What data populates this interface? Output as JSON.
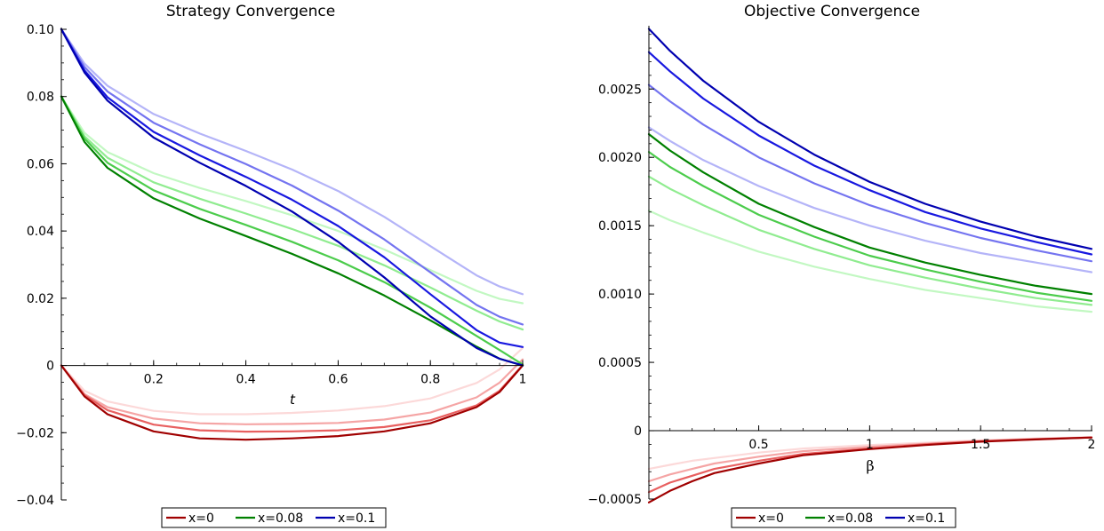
{
  "colors": {
    "x0": [
      "#a00000",
      "#e86060",
      "#f5a5a5",
      "#fcd9d9"
    ],
    "x008": [
      "#008000",
      "#4ccc4c",
      "#90ec90",
      "#c2f8c2"
    ],
    "x01": [
      "#0000b0",
      "#1818e0",
      "#7474f0",
      "#b4b4f8"
    ]
  },
  "chart_data": [
    {
      "type": "line",
      "title": "Strategy Convergence",
      "xlabel": "t",
      "ylabel": "",
      "xlim": [
        0,
        1
      ],
      "ylim": [
        -0.04,
        0.1
      ],
      "xticks": [
        "0.2",
        "0.4",
        "0.6",
        "0.8",
        "1"
      ],
      "yticks": [
        "0.10",
        "0.08",
        "0.06",
        "0.04",
        "0.02",
        "0",
        "−0.02",
        "−0.04"
      ],
      "legend": [
        "x=0",
        "x=0.08",
        "x=0.1"
      ],
      "legend_position": "bottom",
      "series": [
        {
          "name": "x=0",
          "group": "x0",
          "shade": 0,
          "x": [
            0,
            0.05,
            0.1,
            0.2,
            0.3,
            0.4,
            0.5,
            0.6,
            0.7,
            0.8,
            0.9,
            0.95,
            1
          ],
          "y": [
            0,
            -0.0092,
            -0.0145,
            -0.0196,
            -0.0217,
            -0.0221,
            -0.0217,
            -0.021,
            -0.0196,
            -0.0172,
            -0.0124,
            -0.0079,
            0
          ]
        },
        {
          "group": "x0",
          "shade": 1,
          "x": [
            0,
            0.05,
            0.1,
            0.2,
            0.3,
            0.4,
            0.5,
            0.6,
            0.7,
            0.8,
            0.9,
            0.95,
            1
          ],
          "y": [
            0,
            -0.0088,
            -0.0133,
            -0.0176,
            -0.0193,
            -0.0197,
            -0.0196,
            -0.0193,
            -0.0183,
            -0.0163,
            -0.0119,
            -0.0075,
            0.0001
          ]
        },
        {
          "group": "x0",
          "shade": 2,
          "x": [
            0,
            0.05,
            0.1,
            0.2,
            0.3,
            0.4,
            0.5,
            0.6,
            0.7,
            0.8,
            0.9,
            0.95,
            1
          ],
          "y": [
            0,
            -0.0085,
            -0.0124,
            -0.0158,
            -0.0172,
            -0.0175,
            -0.0174,
            -0.0171,
            -0.0161,
            -0.014,
            -0.0095,
            -0.0051,
            0.0018
          ]
        },
        {
          "group": "x0",
          "shade": 3,
          "x": [
            0,
            0.05,
            0.1,
            0.2,
            0.3,
            0.4,
            0.5,
            0.6,
            0.7,
            0.8,
            0.9,
            0.95,
            1
          ],
          "y": [
            0,
            -0.0075,
            -0.0107,
            -0.0135,
            -0.0145,
            -0.0145,
            -0.0141,
            -0.0134,
            -0.0121,
            -0.0098,
            -0.0052,
            -0.0012,
            0.0052
          ]
        },
        {
          "name": "x=0.08",
          "group": "x008",
          "shade": 0,
          "x": [
            0,
            0.05,
            0.1,
            0.2,
            0.3,
            0.4,
            0.5,
            0.6,
            0.7,
            0.8,
            0.9,
            0.95,
            1
          ],
          "y": [
            0.08,
            0.0665,
            0.0588,
            0.0497,
            0.0437,
            0.0385,
            0.0332,
            0.0274,
            0.0208,
            0.0134,
            0.0056,
            0.002,
            0
          ]
        },
        {
          "group": "x008",
          "shade": 1,
          "x": [
            0,
            0.05,
            0.1,
            0.2,
            0.3,
            0.4,
            0.5,
            0.6,
            0.7,
            0.8,
            0.9,
            0.95,
            1
          ],
          "y": [
            0.08,
            0.0675,
            0.0603,
            0.0521,
            0.0466,
            0.0418,
            0.0368,
            0.0313,
            0.0248,
            0.0172,
            0.0088,
            0.0046,
            0.0003
          ]
        },
        {
          "group": "x008",
          "shade": 2,
          "x": [
            0,
            0.05,
            0.1,
            0.2,
            0.3,
            0.4,
            0.5,
            0.6,
            0.7,
            0.8,
            0.9,
            0.95,
            1
          ],
          "y": [
            0.08,
            0.0682,
            0.0618,
            0.0545,
            0.0496,
            0.0452,
            0.0406,
            0.0356,
            0.0298,
            0.0232,
            0.0163,
            0.0131,
            0.0107
          ]
        },
        {
          "group": "x008",
          "shade": 3,
          "x": [
            0,
            0.05,
            0.1,
            0.2,
            0.3,
            0.4,
            0.5,
            0.6,
            0.7,
            0.8,
            0.9,
            0.95,
            1
          ],
          "y": [
            0.08,
            0.0692,
            0.0635,
            0.0572,
            0.0528,
            0.0489,
            0.0447,
            0.04,
            0.0345,
            0.0284,
            0.0222,
            0.0198,
            0.0185
          ]
        },
        {
          "name": "x=0.1",
          "group": "x01",
          "shade": 0,
          "x": [
            0,
            0.05,
            0.1,
            0.2,
            0.3,
            0.4,
            0.5,
            0.6,
            0.7,
            0.8,
            0.9,
            0.95,
            1
          ],
          "y": [
            0.1,
            0.0872,
            0.0788,
            0.0678,
            0.0603,
            0.0534,
            0.0458,
            0.0368,
            0.0262,
            0.0146,
            0.0052,
            0.002,
            0
          ]
        },
        {
          "group": "x01",
          "shade": 1,
          "x": [
            0,
            0.05,
            0.1,
            0.2,
            0.3,
            0.4,
            0.5,
            0.6,
            0.7,
            0.8,
            0.9,
            0.95,
            1
          ],
          "y": [
            0.1,
            0.0878,
            0.0798,
            0.0695,
            0.0625,
            0.0561,
            0.0493,
            0.0415,
            0.0322,
            0.0212,
            0.0105,
            0.0068,
            0.0055
          ]
        },
        {
          "group": "x01",
          "shade": 2,
          "x": [
            0,
            0.05,
            0.1,
            0.2,
            0.3,
            0.4,
            0.5,
            0.6,
            0.7,
            0.8,
            0.9,
            0.95,
            1
          ],
          "y": [
            0.1,
            0.0888,
            0.0815,
            0.0722,
            0.0658,
            0.0599,
            0.0535,
            0.0461,
            0.0375,
            0.0277,
            0.018,
            0.0145,
            0.0122
          ]
        },
        {
          "group": "x01",
          "shade": 3,
          "x": [
            0,
            0.05,
            0.1,
            0.2,
            0.3,
            0.4,
            0.5,
            0.6,
            0.7,
            0.8,
            0.9,
            0.95,
            1
          ],
          "y": [
            0.1,
            0.0898,
            0.0832,
            0.0748,
            0.069,
            0.0638,
            0.0583,
            0.0519,
            0.0442,
            0.0355,
            0.0268,
            0.0235,
            0.0212
          ]
        }
      ]
    },
    {
      "type": "line",
      "title": "Objective Convergence",
      "xlabel": "β",
      "ylabel": "",
      "xlim": [
        0.005,
        2
      ],
      "ylim": [
        -0.0005,
        0.00295
      ],
      "xticks": [
        "0.5",
        "1",
        "1.5",
        "2"
      ],
      "yticks": [
        "0.0025",
        "0.0020",
        "0.0015",
        "0.0010",
        "0.0005",
        "0",
        "−0.0005"
      ],
      "legend": [
        "x=0",
        "x=0.08",
        "x=0.1"
      ],
      "legend_position": "bottom",
      "series": [
        {
          "name": "x=0",
          "group": "x0",
          "shade": 0,
          "x": [
            0.005,
            0.1,
            0.2,
            0.3,
            0.5,
            0.7,
            1,
            1.25,
            1.5,
            1.75,
            2
          ],
          "y": [
            -0.000525,
            -0.00044,
            -0.00037,
            -0.00031,
            -0.00024,
            -0.00018,
            -0.000135,
            -0.000105,
            -8e-05,
            -6.4e-05,
            -5e-05
          ]
        },
        {
          "group": "x0",
          "shade": 1,
          "x": [
            0.005,
            0.1,
            0.2,
            0.3,
            0.5,
            0.7,
            1,
            1.25,
            1.5,
            1.75,
            2
          ],
          "y": [
            -0.00045,
            -0.00038,
            -0.00033,
            -0.00028,
            -0.00022,
            -0.00017,
            -0.00013,
            -0.0001,
            -7.8e-05,
            -6.2e-05,
            -5e-05
          ]
        },
        {
          "group": "x0",
          "shade": 2,
          "x": [
            0.005,
            0.1,
            0.2,
            0.3,
            0.5,
            0.7,
            1,
            1.25,
            1.5,
            1.75,
            2
          ],
          "y": [
            -0.00037,
            -0.00032,
            -0.00028,
            -0.00024,
            -0.00019,
            -0.00015,
            -0.000118,
            -9.5e-05,
            -7.5e-05,
            -6e-05,
            -4.9e-05
          ]
        },
        {
          "group": "x0",
          "shade": 3,
          "x": [
            0.005,
            0.1,
            0.2,
            0.3,
            0.5,
            0.7,
            1,
            1.25,
            1.5,
            1.75,
            2
          ],
          "y": [
            -0.00028,
            -0.00025,
            -0.00022,
            -0.0002,
            -0.00016,
            -0.00013,
            -0.000105,
            -8.8e-05,
            -7e-05,
            -5.7e-05,
            -4.7e-05
          ]
        },
        {
          "name": "x=0.08",
          "group": "x008",
          "shade": 0,
          "x": [
            0.005,
            0.1,
            0.25,
            0.5,
            0.75,
            1,
            1.25,
            1.5,
            1.75,
            2
          ],
          "y": [
            0.00217,
            0.00205,
            0.00189,
            0.00166,
            0.00149,
            0.00134,
            0.00123,
            0.00114,
            0.00106,
            0.001
          ]
        },
        {
          "group": "x008",
          "shade": 1,
          "x": [
            0.005,
            0.1,
            0.25,
            0.5,
            0.75,
            1,
            1.25,
            1.5,
            1.75,
            2
          ],
          "y": [
            0.00204,
            0.00193,
            0.00179,
            0.00158,
            0.00142,
            0.00128,
            0.00118,
            0.00109,
            0.00101,
            0.00095
          ]
        },
        {
          "group": "x008",
          "shade": 2,
          "x": [
            0.005,
            0.1,
            0.25,
            0.5,
            0.75,
            1,
            1.25,
            1.5,
            1.75,
            2
          ],
          "y": [
            0.00186,
            0.00177,
            0.00165,
            0.00147,
            0.00133,
            0.00121,
            0.00112,
            0.00104,
            0.00097,
            0.00092
          ]
        },
        {
          "group": "x008",
          "shade": 3,
          "x": [
            0.005,
            0.1,
            0.25,
            0.5,
            0.75,
            1,
            1.25,
            1.5,
            1.75,
            2
          ],
          "y": [
            0.00161,
            0.00154,
            0.00145,
            0.00131,
            0.0012,
            0.00111,
            0.00103,
            0.00097,
            0.00091,
            0.00087
          ]
        },
        {
          "name": "x=0.1",
          "group": "x01",
          "shade": 0,
          "x": [
            0.005,
            0.1,
            0.25,
            0.5,
            0.75,
            1,
            1.25,
            1.5,
            1.75,
            2
          ],
          "y": [
            0.00294,
            0.00278,
            0.00256,
            0.00226,
            0.00202,
            0.00182,
            0.00166,
            0.00153,
            0.00142,
            0.00133
          ]
        },
        {
          "group": "x01",
          "shade": 1,
          "x": [
            0.005,
            0.1,
            0.25,
            0.5,
            0.75,
            1,
            1.25,
            1.5,
            1.75,
            2
          ],
          "y": [
            0.00277,
            0.00263,
            0.00243,
            0.00216,
            0.00194,
            0.00176,
            0.0016,
            0.00148,
            0.00138,
            0.00129
          ]
        },
        {
          "group": "x01",
          "shade": 2,
          "x": [
            0.005,
            0.1,
            0.25,
            0.5,
            0.75,
            1,
            1.25,
            1.5,
            1.75,
            2
          ],
          "y": [
            0.00253,
            0.00241,
            0.00224,
            0.002,
            0.00181,
            0.00165,
            0.00152,
            0.00141,
            0.00132,
            0.00124
          ]
        },
        {
          "group": "x01",
          "shade": 3,
          "x": [
            0.005,
            0.1,
            0.25,
            0.5,
            0.75,
            1,
            1.25,
            1.5,
            1.75,
            2
          ],
          "y": [
            0.00222,
            0.00212,
            0.00198,
            0.00179,
            0.00163,
            0.0015,
            0.00139,
            0.0013,
            0.00123,
            0.00116
          ]
        }
      ]
    }
  ]
}
